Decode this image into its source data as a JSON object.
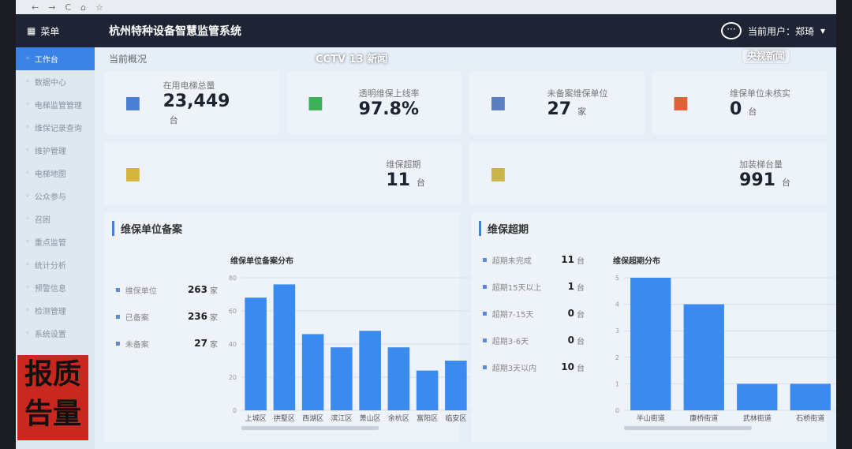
{
  "header": {
    "menu_label": "菜单",
    "title": "杭州特种设备智慧监管系统",
    "user_label": "当前用户：郑琦",
    "chat_icon": "chat-bubble-icon"
  },
  "sidebar": {
    "items": [
      {
        "label": "工作台",
        "active": true
      },
      {
        "label": "数据中心"
      },
      {
        "label": "电梯监管管理"
      },
      {
        "label": "维保记录查询"
      },
      {
        "label": "维护管理"
      },
      {
        "label": "电梯地图"
      },
      {
        "label": "公众参与"
      },
      {
        "label": "召困"
      },
      {
        "label": "重点监管"
      },
      {
        "label": "统计分析"
      },
      {
        "label": "预警信息"
      },
      {
        "label": "检测管理"
      },
      {
        "label": "系统设置"
      }
    ]
  },
  "breadcrumb": "当前概况",
  "cards": [
    {
      "label": "在用电梯总量",
      "value": "23,449",
      "unit": "台",
      "icon": "elevator-icon",
      "color": "#4a7fd6"
    },
    {
      "label": "透明维保上线率",
      "value": "97.8%",
      "unit": "",
      "icon": "door-icon",
      "color": "#3fae5a"
    },
    {
      "label": "未备案维保单位",
      "value": "27",
      "unit": "家",
      "icon": "building-icon",
      "color": "#5a7fc0"
    },
    {
      "label": "维保单位未核实",
      "value": "0",
      "unit": "台",
      "icon": "alert-box-icon",
      "color": "#e0603a"
    },
    {
      "label": "维保超期",
      "value": "11",
      "unit": "台",
      "icon": "tools-icon",
      "color": "#d4b43a"
    },
    {
      "label": "加装梯台量",
      "value": "991",
      "unit": "台",
      "icon": "wrench-icon",
      "color": "#c9b54a"
    }
  ],
  "left_panel": {
    "title": "维保单位备案",
    "stats": [
      {
        "label": "维保单位",
        "value": "263",
        "unit": "家"
      },
      {
        "label": "已备案",
        "value": "236",
        "unit": "家"
      },
      {
        "label": "未备案",
        "value": "27",
        "unit": "家"
      }
    ]
  },
  "right_panel": {
    "title": "维保超期",
    "stats": [
      {
        "label": "超期未完成",
        "value": "11",
        "unit": "台"
      },
      {
        "label": "超期15天以上",
        "value": "1",
        "unit": "台"
      },
      {
        "label": "超期7-15天",
        "value": "0",
        "unit": "台"
      },
      {
        "label": "超期3-6天",
        "value": "0",
        "unit": "台"
      },
      {
        "label": "超期3天以内",
        "value": "10",
        "unit": "台"
      }
    ]
  },
  "chart_data": [
    {
      "type": "bar",
      "title": "维保单位备案分布",
      "categories": [
        "上城区",
        "拱墅区",
        "西湖区",
        "滨江区",
        "萧山区",
        "余杭区",
        "富阳区",
        "临安区"
      ],
      "values": [
        68,
        76,
        46,
        38,
        48,
        38,
        24,
        30
      ],
      "ylim": [
        0,
        80
      ],
      "yticks": [
        0,
        20,
        40,
        60,
        80
      ],
      "grid": true,
      "color": "#3b8af0"
    },
    {
      "type": "bar",
      "title": "维保超期分布",
      "categories": [
        "半山街道",
        "康桥街道",
        "武林街道",
        "石桥街道"
      ],
      "values": [
        5,
        4,
        1,
        1
      ],
      "ylim": [
        0,
        5
      ],
      "yticks": [
        0,
        1,
        2,
        3,
        4,
        5
      ],
      "grid": true,
      "color": "#3b8af0"
    }
  ],
  "watermarks": {
    "cctv": "CCTV 13 新闻",
    "yangshi": "央视新闻",
    "program": "质量报告"
  }
}
